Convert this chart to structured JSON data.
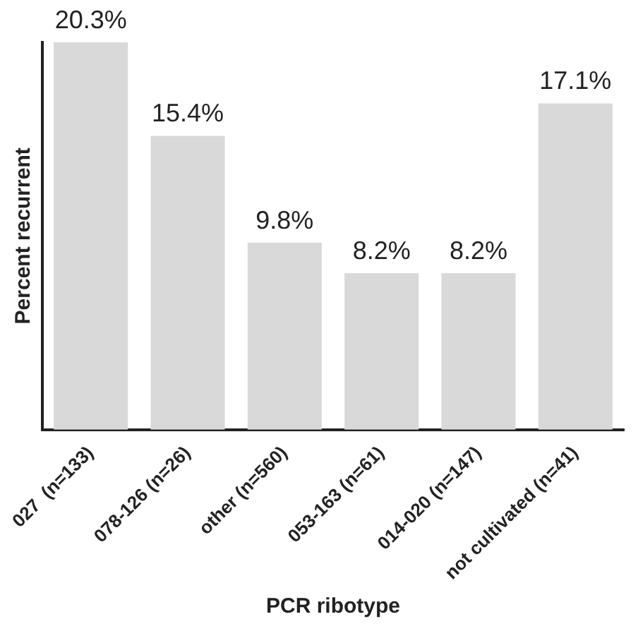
{
  "chart_data": {
    "type": "bar",
    "xlabel": "PCR ribotype",
    "ylabel": "Percent recurrent",
    "categories": [
      "027  (n=133)",
      "078-126 (n=26)",
      "other (n=560)",
      "053-163 (n=61)",
      "014-020 (n=147)",
      "not cultivated (n=41)"
    ],
    "values": [
      20.3,
      15.4,
      9.8,
      8.2,
      8.2,
      17.1
    ],
    "value_labels": [
      "20.3%",
      "15.4%",
      "9.8%",
      "8.2%",
      "8.2%",
      "17.1%"
    ],
    "color": "#d9d9d9",
    "grid": false,
    "legend": false,
    "tick_labels": "x"
  }
}
